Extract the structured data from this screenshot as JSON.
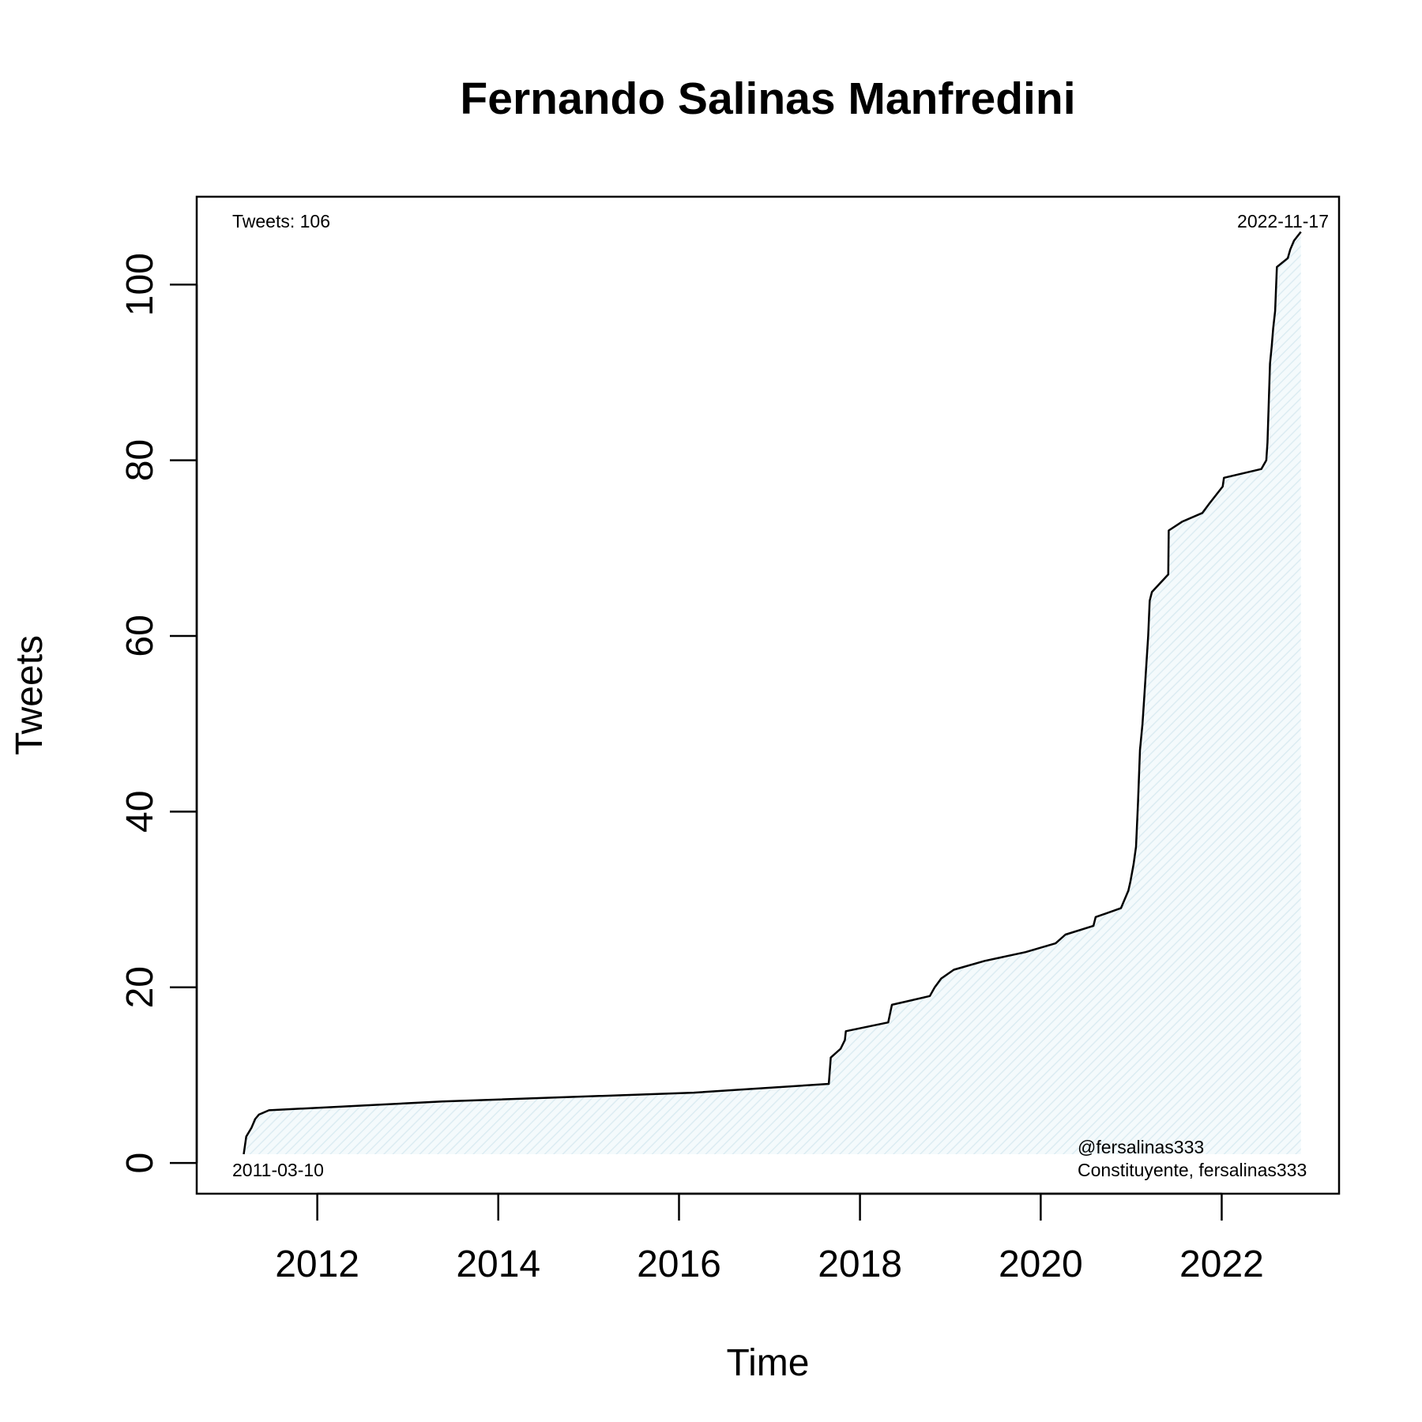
{
  "chart_data": {
    "type": "area",
    "title": "Fernando Salinas Manfredini",
    "xlabel": "Time",
    "ylabel": "Tweets",
    "xlim": [
      "2010-09-01",
      "2023-04-20"
    ],
    "ylim": [
      -3.5,
      110
    ],
    "x_ticks": [
      "2012",
      "2014",
      "2016",
      "2018",
      "2020",
      "2022"
    ],
    "y_ticks": [
      "0",
      "20",
      "40",
      "60",
      "80",
      "100"
    ],
    "grid": false,
    "fill_color": "#e8f3f7",
    "line_color": "#000000",
    "annotations": {
      "top_left": "Tweets: 106",
      "top_right": "2022-11-17",
      "bottom_left": "2011-03-10",
      "bottom_right_line1": "@fersalinas333",
      "bottom_right_line2": "Constituyente, fersalinas333"
    },
    "series": [
      {
        "x": [
          "2011-03-10",
          "2011-03-20",
          "2011-04-10",
          "2011-04-25",
          "2011-05-10",
          "2011-06-20",
          "2013-05-20",
          "2016-03-01",
          "2017-08-28",
          "2017-09-05",
          "2017-10-15",
          "2017-11-01",
          "2017-11-05",
          "2018-04-25",
          "2018-05-10",
          "2018-10-10",
          "2018-10-30",
          "2018-11-25",
          "2019-01-15",
          "2019-05-20",
          "2019-11-01",
          "2020-03-01",
          "2020-04-10",
          "2020-08-01",
          "2020-08-10",
          "2020-11-20",
          "2020-12-05",
          "2020-12-20",
          "2020-12-28",
          "2021-01-10",
          "2021-01-20",
          "2021-01-28",
          "2021-02-05",
          "2021-02-15",
          "2021-02-22",
          "2021-03-10",
          "2021-03-16",
          "2021-03-25",
          "2021-05-30",
          "2021-06-01",
          "2021-07-25",
          "2021-10-15",
          "2021-11-10",
          "2022-01-05",
          "2022-01-10",
          "2022-06-10",
          "2022-06-30",
          "2022-07-05",
          "2022-07-15",
          "2022-07-22",
          "2022-07-28",
          "2022-08-05",
          "2022-08-12",
          "2022-09-25",
          "2022-10-05",
          "2022-10-20",
          "2022-11-17"
        ],
        "y": [
          1,
          3,
          4,
          5,
          5.5,
          6,
          7,
          8,
          9,
          12,
          13,
          14,
          15,
          16,
          18,
          19,
          20,
          21,
          22,
          23,
          24,
          25,
          26,
          27,
          28,
          29,
          30,
          31,
          32,
          34,
          36,
          41,
          47,
          50,
          53,
          60,
          64,
          65,
          67,
          72,
          73,
          74,
          75,
          77,
          78,
          79,
          80,
          82,
          91,
          93,
          95,
          97,
          102,
          103,
          104,
          105,
          106
        ]
      }
    ]
  }
}
